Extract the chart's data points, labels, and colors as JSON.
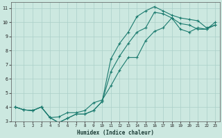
{
  "xlabel": "Humidex (Indice chaleur)",
  "bg_color": "#cce8e0",
  "grid_color": "#aacfc8",
  "line_color": "#1a7a6e",
  "xlim": [
    -0.5,
    23.5
  ],
  "ylim": [
    3,
    11.4
  ],
  "xticks": [
    0,
    1,
    2,
    3,
    4,
    5,
    6,
    7,
    8,
    9,
    10,
    11,
    12,
    13,
    14,
    15,
    16,
    17,
    18,
    19,
    20,
    21,
    22,
    23
  ],
  "yticks": [
    3,
    4,
    5,
    6,
    7,
    8,
    9,
    10,
    11
  ],
  "line1_y": [
    4.0,
    3.8,
    3.75,
    4.0,
    3.25,
    3.3,
    3.6,
    3.6,
    3.75,
    4.3,
    4.5,
    5.5,
    6.6,
    7.5,
    7.5,
    8.7,
    9.35,
    9.6,
    10.3,
    9.5,
    9.3,
    9.6,
    9.5,
    10.0
  ],
  "line2_y": [
    4.0,
    3.8,
    3.75,
    4.0,
    3.25,
    2.9,
    3.2,
    3.5,
    3.5,
    3.75,
    4.4,
    7.4,
    8.5,
    9.3,
    10.4,
    10.8,
    11.1,
    10.8,
    10.5,
    10.3,
    10.2,
    10.1,
    9.6,
    9.8
  ],
  "line3_y": [
    4.0,
    3.8,
    3.75,
    4.0,
    3.25,
    2.9,
    3.2,
    3.5,
    3.5,
    3.75,
    4.4,
    6.5,
    7.6,
    8.5,
    9.3,
    9.6,
    10.7,
    10.6,
    10.3,
    9.9,
    9.8,
    9.5,
    9.5,
    9.8
  ]
}
